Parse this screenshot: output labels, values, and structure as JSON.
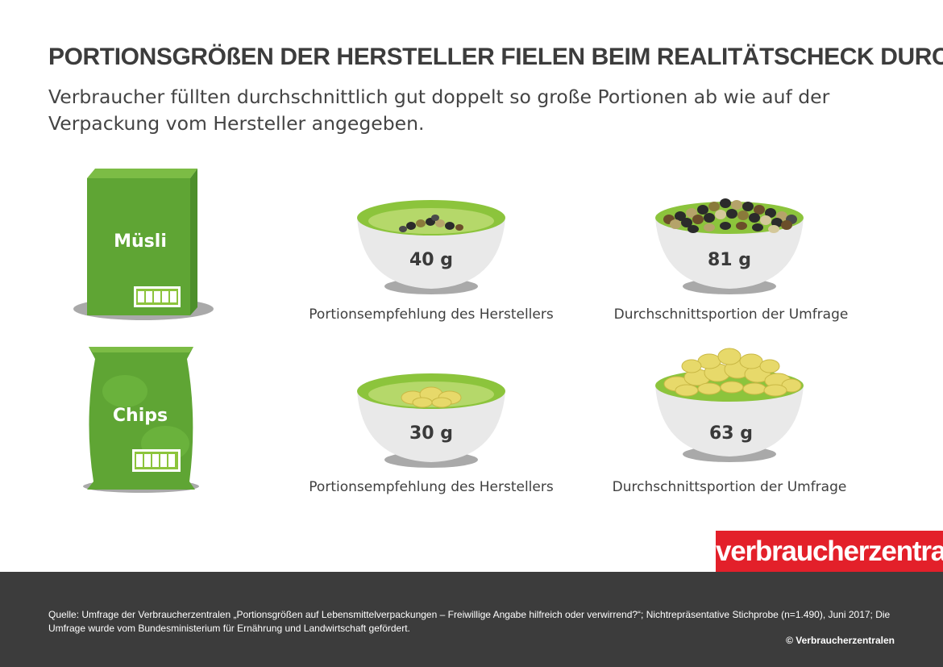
{
  "header": {
    "title": "PORTIONSGRÖßEN DER HERSTELLER FIELEN BEIM REALITÄTSCHECK DURCH",
    "subtitle": "Verbraucher füllten durchschnittlich gut doppelt so große Portionen ab wie auf der Verpackung vom Hersteller angegeben."
  },
  "products": [
    {
      "package_label": "Müsli",
      "package_icon": "cereal-box-icon",
      "recommended": {
        "weight": "40 g",
        "caption": "Portionsempfehlung des Herstellers"
      },
      "survey": {
        "weight": "81 g",
        "caption": "Durchschnittsportion der Umfrage"
      }
    },
    {
      "package_label": "Chips",
      "package_icon": "chips-bag-icon",
      "recommended": {
        "weight": "30 g",
        "caption": "Portionsempfehlung des Herstellers"
      },
      "survey": {
        "weight": "63 g",
        "caption": "Durchschnittsportion der Umfrage"
      }
    }
  ],
  "brand": {
    "logo_text": "verbraucherzentrale",
    "color": "#e3202a"
  },
  "footer": {
    "source": "Quelle: Umfrage der Verbraucherzentralen „Portionsgrößen auf Lebensmittelverpackungen – Freiwillige Angabe hilfreich oder verwirrend?“; Nichtrepräsentative Stichprobe (n=1.490), Juni 2017; Die Umfrage wurde vom Bundesministerium für Ernährung und Landwirtschaft gefördert.",
    "copyright": "© Verbraucherzentralen"
  },
  "colors": {
    "package_green": "#5fa534",
    "bowl_inner": "#8cc43c",
    "bowl_outer": "#e9e9e9",
    "shadow": "#a9a9a9",
    "footer_bg": "#3c3c3c"
  }
}
